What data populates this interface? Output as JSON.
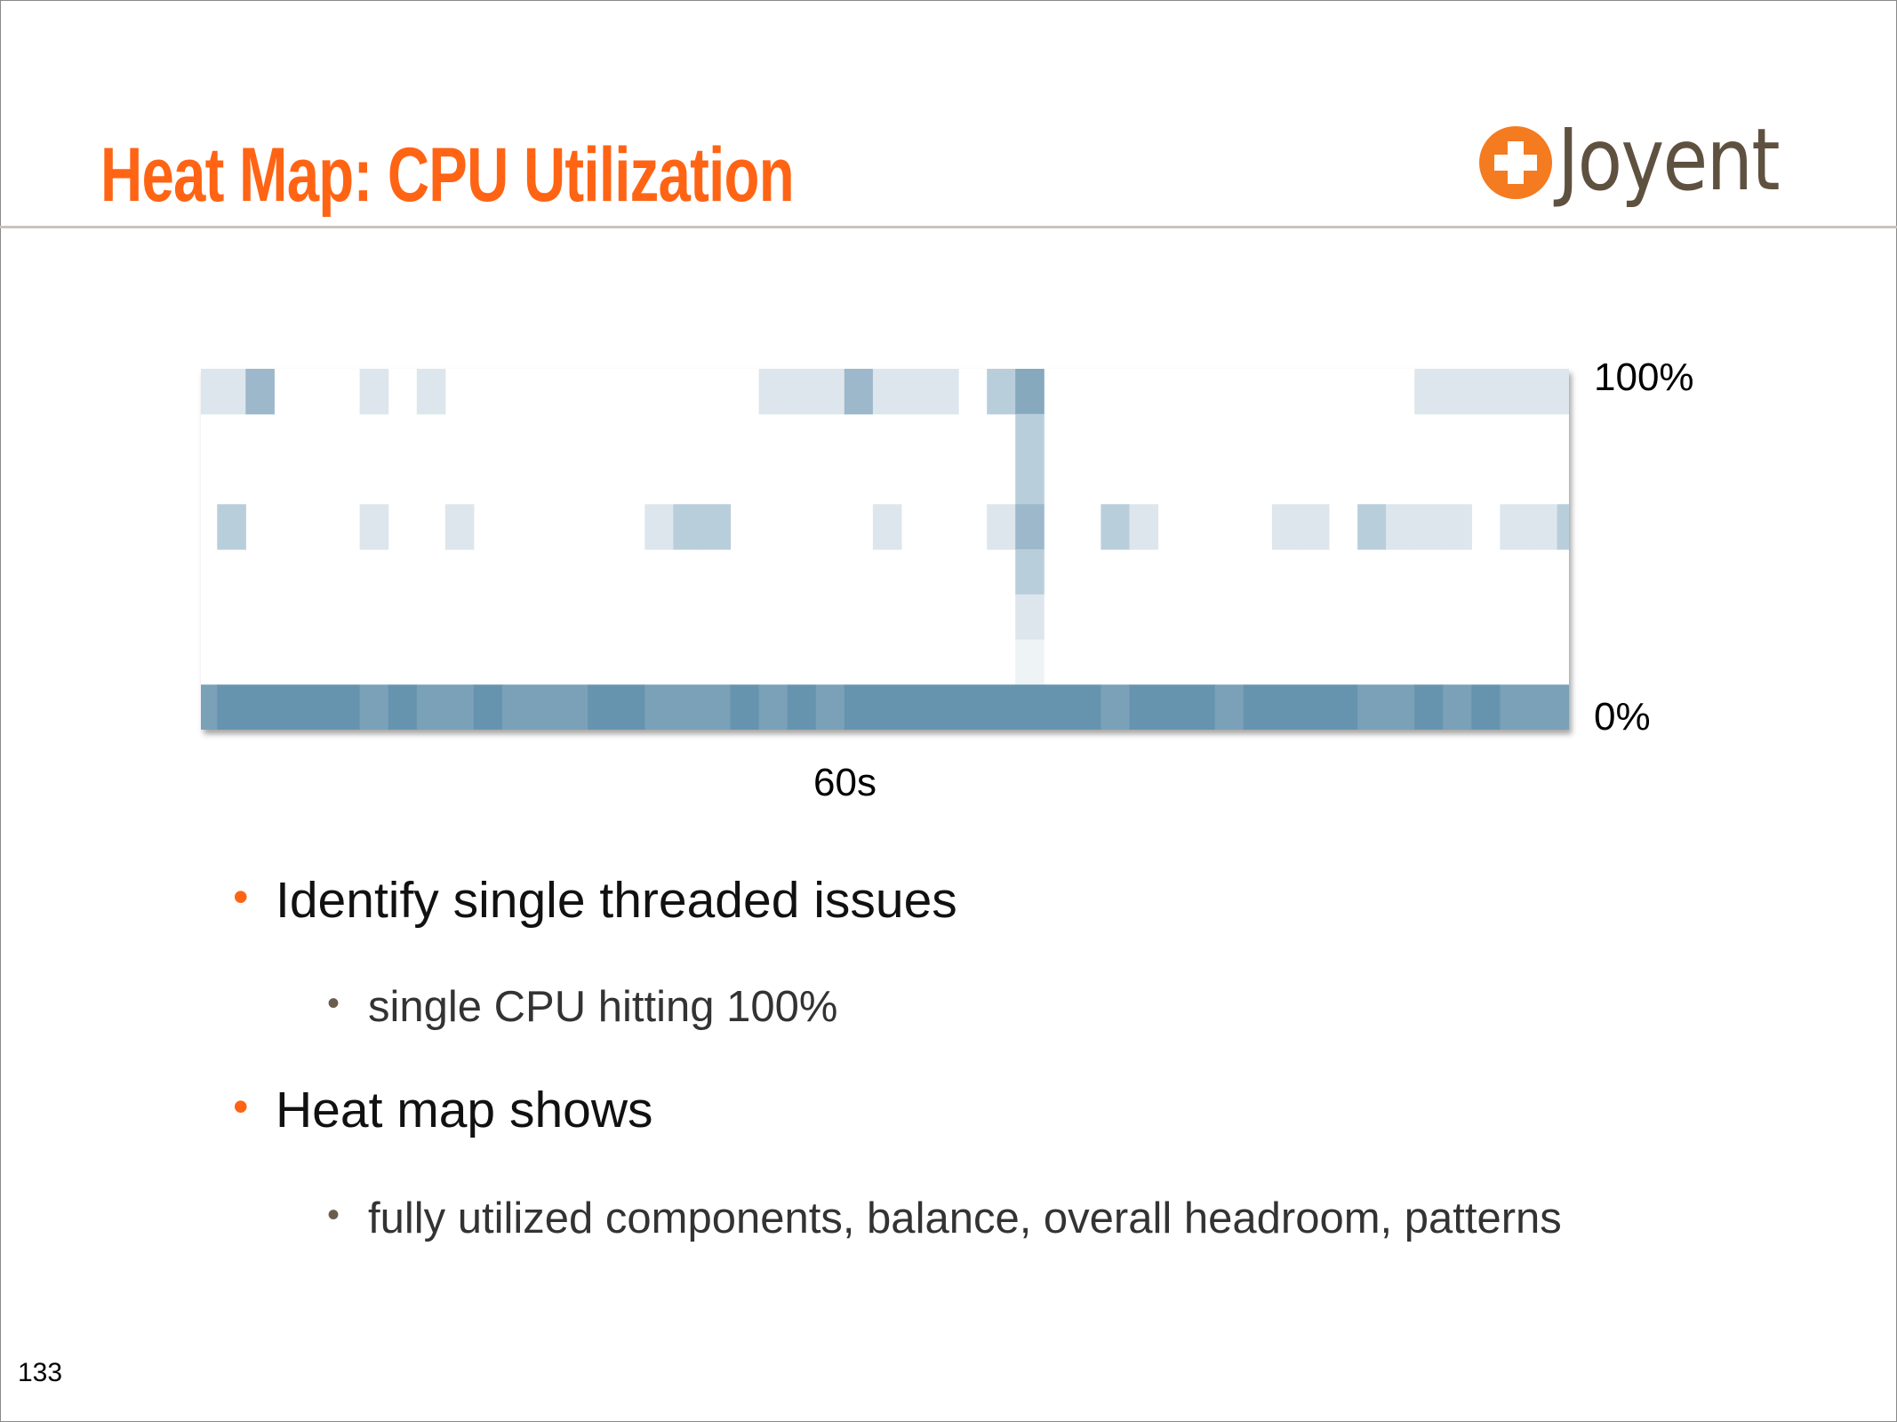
{
  "slide": {
    "title": "Heat Map: CPU Utilization",
    "logo_text": "Joyent",
    "page_number": "133",
    "colors": {
      "title": "#ff6414",
      "bullet": "#ff6414",
      "sub_bullet": "#6b5d4d",
      "logo_mark": "#f47b20",
      "logo_text": "#5f5140"
    }
  },
  "bullets": [
    {
      "text": "Identify single threaded issues",
      "sub": [
        "single CPU hitting 100%"
      ]
    },
    {
      "text": "Heat map shows",
      "sub": [
        "fully utilized components, balance, overall headroom, patterns"
      ]
    }
  ],
  "chart_data": {
    "type": "heatmap",
    "title": "",
    "xlabel": "60s",
    "ylabel": "",
    "y_tick_labels": {
      "top": "100%",
      "bottom": "0%"
    },
    "ylim": [
      0,
      100
    ],
    "x_columns": 49,
    "y_buckets": 8,
    "intensity_scale": [
      "#ffffff",
      "#eef3f6",
      "#dde6ec",
      "#b9cedb",
      "#9cb8ca",
      "#86a9be",
      "#7aa1b8",
      "#6694ae"
    ],
    "rows_top_to_bottom": [
      [
        2,
        2,
        4,
        0,
        0,
        0,
        2,
        0,
        2,
        0,
        0,
        0,
        0,
        0,
        0,
        0,
        0,
        0,
        0,
        0,
        2,
        2,
        2,
        4,
        2,
        2,
        2,
        0,
        3,
        5,
        0,
        0,
        0,
        0,
        0,
        0,
        0,
        0,
        0,
        0,
        0,
        0,
        0,
        2,
        2,
        2,
        2,
        2,
        2
      ],
      [
        0,
        0,
        0,
        0,
        0,
        0,
        0,
        0,
        0,
        0,
        0,
        0,
        0,
        0,
        0,
        0,
        0,
        0,
        0,
        0,
        0,
        0,
        0,
        0,
        0,
        0,
        0,
        0,
        0,
        3,
        0,
        0,
        0,
        0,
        0,
        0,
        0,
        0,
        0,
        0,
        0,
        0,
        0,
        0,
        0,
        0,
        0,
        0,
        0
      ],
      [
        0,
        0,
        0,
        0,
        0,
        0,
        0,
        0,
        0,
        0,
        0,
        0,
        0,
        0,
        0,
        0,
        0,
        0,
        0,
        0,
        0,
        0,
        0,
        0,
        0,
        0,
        0,
        0,
        0,
        3,
        0,
        0,
        0,
        0,
        0,
        0,
        0,
        0,
        0,
        0,
        0,
        0,
        0,
        0,
        0,
        0,
        0,
        0,
        0
      ],
      [
        0,
        3,
        0,
        0,
        0,
        0,
        2,
        0,
        0,
        2,
        0,
        0,
        0,
        0,
        0,
        0,
        2,
        3,
        3,
        0,
        0,
        0,
        0,
        0,
        2,
        0,
        0,
        0,
        2,
        4,
        0,
        0,
        3,
        2,
        0,
        0,
        0,
        0,
        2,
        2,
        0,
        3,
        2,
        2,
        2,
        0,
        2,
        2,
        3
      ],
      [
        0,
        0,
        0,
        0,
        0,
        0,
        0,
        0,
        0,
        0,
        0,
        0,
        0,
        0,
        0,
        0,
        0,
        0,
        0,
        0,
        0,
        0,
        0,
        0,
        0,
        0,
        0,
        0,
        0,
        3,
        0,
        0,
        0,
        0,
        0,
        0,
        0,
        0,
        0,
        0,
        0,
        0,
        0,
        0,
        0,
        0,
        0,
        0,
        0
      ],
      [
        0,
        0,
        0,
        0,
        0,
        0,
        0,
        0,
        0,
        0,
        0,
        0,
        0,
        0,
        0,
        0,
        0,
        0,
        0,
        0,
        0,
        0,
        0,
        0,
        0,
        0,
        0,
        0,
        0,
        2,
        0,
        0,
        0,
        0,
        0,
        0,
        0,
        0,
        0,
        0,
        0,
        0,
        0,
        0,
        0,
        0,
        0,
        0,
        0
      ],
      [
        0,
        0,
        0,
        0,
        0,
        0,
        0,
        0,
        0,
        0,
        0,
        0,
        0,
        0,
        0,
        0,
        0,
        0,
        0,
        0,
        0,
        0,
        0,
        0,
        0,
        0,
        0,
        0,
        0,
        1,
        0,
        0,
        0,
        0,
        0,
        0,
        0,
        0,
        0,
        0,
        0,
        0,
        0,
        0,
        0,
        0,
        0,
        0,
        0
      ],
      [
        6,
        7,
        7,
        7,
        7,
        7,
        6,
        7,
        6,
        6,
        7,
        6,
        6,
        6,
        7,
        7,
        6,
        6,
        6,
        7,
        6,
        7,
        6,
        7,
        7,
        7,
        7,
        7,
        7,
        7,
        7,
        7,
        6,
        7,
        7,
        7,
        6,
        7,
        7,
        7,
        7,
        6,
        6,
        7,
        6,
        7,
        6,
        6,
        6
      ]
    ]
  }
}
